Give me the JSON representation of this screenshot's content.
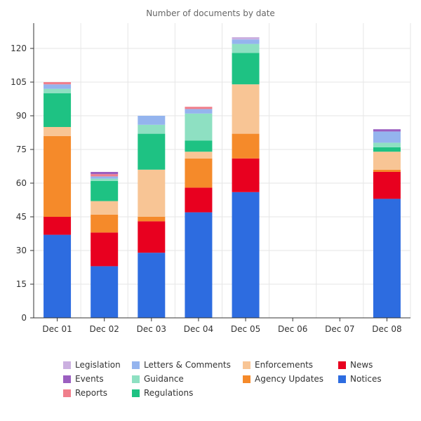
{
  "chart_data": {
    "type": "bar",
    "stacked": true,
    "title": "Number of documents by date",
    "xlabel": "",
    "ylabel": "",
    "ylim": [
      0,
      130
    ],
    "yticks": [
      0,
      15,
      30,
      45,
      60,
      75,
      90,
      105,
      120
    ],
    "grid": true,
    "legend_position": "bottom",
    "categories": [
      "Dec 01",
      "Dec 02",
      "Dec 03",
      "Dec 04",
      "Dec 05",
      "Dec 06",
      "Dec 07",
      "Dec 08"
    ],
    "series": [
      {
        "name": "Notices",
        "color": "#2d6ce0",
        "values": [
          37,
          23,
          29,
          47,
          56,
          0,
          0,
          53
        ]
      },
      {
        "name": "News",
        "color": "#e8001f",
        "values": [
          8,
          15,
          14,
          11,
          15,
          0,
          0,
          12
        ]
      },
      {
        "name": "Agency Updates",
        "color": "#f58a2a",
        "values": [
          36,
          8,
          2,
          13,
          11,
          0,
          0,
          1
        ]
      },
      {
        "name": "Enforcements",
        "color": "#f8c595",
        "values": [
          4,
          6,
          21,
          3,
          22,
          0,
          0,
          8
        ]
      },
      {
        "name": "Regulations",
        "color": "#1ec283",
        "values": [
          15,
          9,
          16,
          5,
          14,
          0,
          0,
          2
        ]
      },
      {
        "name": "Guidance",
        "color": "#8ee0c2",
        "values": [
          2,
          1,
          4,
          12,
          4,
          0,
          0,
          2
        ]
      },
      {
        "name": "Letters & Comments",
        "color": "#94b4ee",
        "values": [
          2,
          1,
          4,
          2,
          2,
          0,
          0,
          5
        ]
      },
      {
        "name": "Reports",
        "color": "#f07f8c",
        "values": [
          1,
          1,
          0,
          1,
          0,
          0,
          0,
          0
        ]
      },
      {
        "name": "Events",
        "color": "#9b5fc0",
        "values": [
          0,
          1,
          0,
          0,
          0,
          0,
          0,
          1
        ]
      },
      {
        "name": "Legislation",
        "color": "#cbb0e0",
        "values": [
          0,
          0,
          0,
          0,
          1,
          0,
          0,
          0
        ]
      }
    ]
  },
  "legend": [
    [
      "Legislation",
      "Events",
      "Reports"
    ],
    [
      "Letters & Comments",
      "Guidance",
      "Regulations"
    ],
    [
      "Enforcements",
      "Agency Updates"
    ],
    [
      "News",
      "Notices"
    ]
  ]
}
